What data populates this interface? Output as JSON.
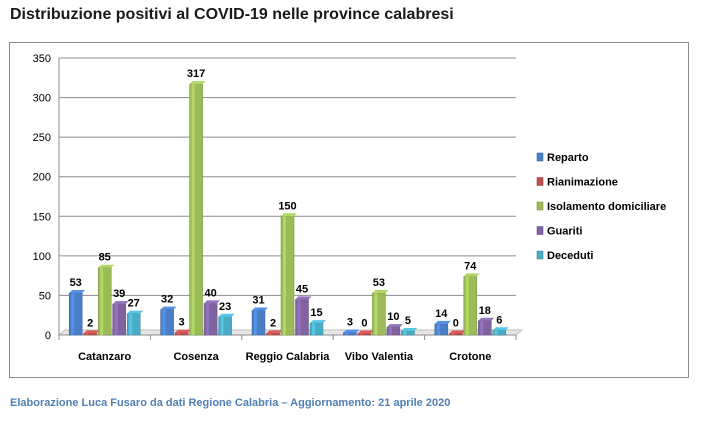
{
  "title": "Distribuzione positivi al COVID-19 nelle province calabresi",
  "footer": "Elaborazione  Luca Fusaro da dati Regione Calabria – Aggiornamento: 21 aprile 2020",
  "chart_data": {
    "type": "bar",
    "title": "Distribuzione positivi al COVID-19 nelle province calabresi",
    "xlabel": "",
    "ylabel": "",
    "ylim": [
      0,
      350
    ],
    "yticks": [
      0,
      50,
      100,
      150,
      200,
      250,
      300,
      350
    ],
    "grid": true,
    "legend_position": "right",
    "categories": [
      "Catanzaro",
      "Cosenza",
      "Reggio Calabria",
      "Vibo Valentia",
      "Crotone"
    ],
    "series": [
      {
        "name": "Reparto",
        "color": "#4a7ec7",
        "values": [
          53,
          32,
          31,
          3,
          14
        ]
      },
      {
        "name": "Rianimazione",
        "color": "#c0504d",
        "values": [
          2,
          3,
          2,
          0,
          0
        ]
      },
      {
        "name": "Isolamento domiciliare",
        "color": "#9bbb59",
        "values": [
          85,
          317,
          150,
          53,
          74
        ]
      },
      {
        "name": "Guariti",
        "color": "#8064a2",
        "values": [
          39,
          40,
          45,
          10,
          18
        ]
      },
      {
        "name": "Deceduti",
        "color": "#4bacc6",
        "values": [
          27,
          23,
          15,
          5,
          6
        ]
      }
    ]
  }
}
